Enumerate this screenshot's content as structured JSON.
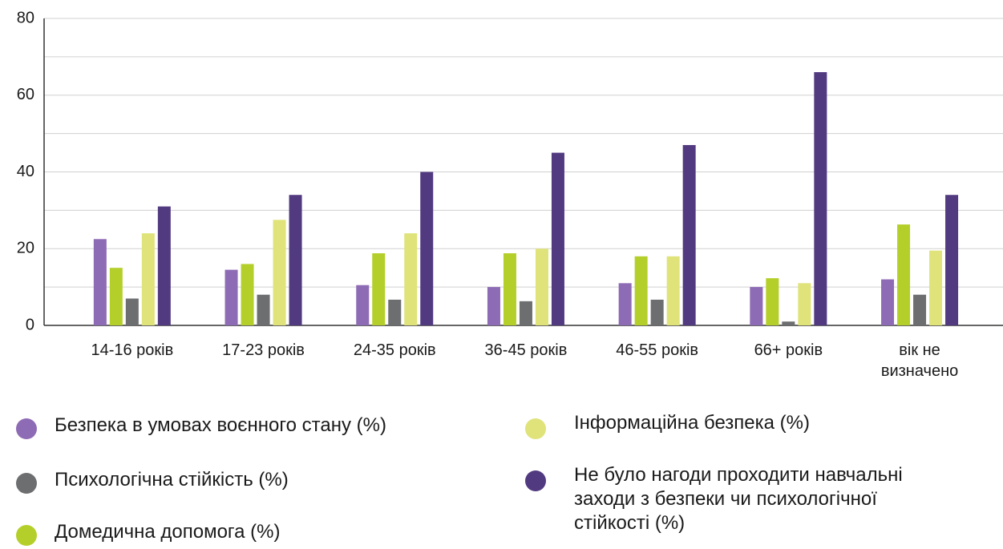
{
  "chart_data": {
    "type": "bar",
    "categories": [
      "14-16 років",
      "17-23 років",
      "24-35 років",
      "36-45 років",
      "46-55 років",
      "66+ років",
      "вік не визначено"
    ],
    "series": [
      {
        "name": "Безпека в умовах воєнного стану (%)",
        "color": "#8e6bb5",
        "values": [
          22.5,
          14.5,
          10.5,
          10,
          11,
          10,
          12
        ]
      },
      {
        "name": "Домедична допомога (%)",
        "color": "#b5cf2a",
        "values": [
          15,
          16,
          18.8,
          18.8,
          18,
          12.3,
          26.3
        ]
      },
      {
        "name": "Психологічна стійкість (%)",
        "color": "#6d6e70",
        "values": [
          7,
          8,
          6.7,
          6.3,
          6.7,
          1,
          8
        ]
      },
      {
        "name": "Інформаційна безпека (%)",
        "color": "#dfe37a",
        "values": [
          24,
          27.5,
          24,
          20,
          18,
          11,
          19.5
        ]
      },
      {
        "name": "Не було нагоди проходити навчальні заходи з безпеки чи психологічної стійкості (%)",
        "color": "#523a80",
        "values": [
          31,
          34,
          40,
          45,
          47,
          66,
          34
        ]
      }
    ],
    "ylim": [
      0,
      80
    ],
    "yticks": [
      0,
      20,
      40,
      60,
      80
    ],
    "minor_yticks": [
      10,
      30,
      50,
      70
    ],
    "grid": true
  }
}
